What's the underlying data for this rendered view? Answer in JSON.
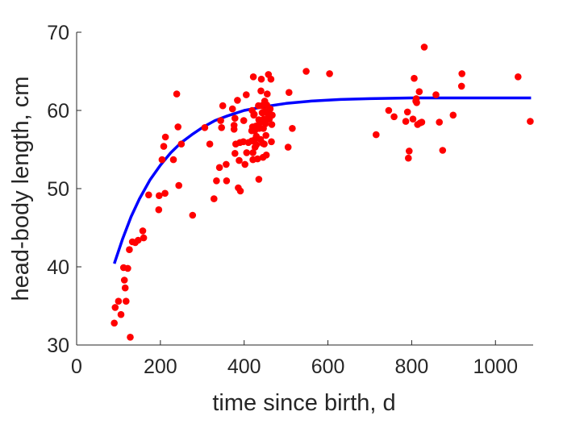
{
  "chart_data": {
    "type": "scatter",
    "title": "",
    "xlabel": "time since birth, d",
    "ylabel": "head-body length, cm",
    "xlim": [
      0,
      1090
    ],
    "ylim": [
      30,
      70
    ],
    "xticks": [
      0,
      200,
      400,
      600,
      800,
      1000
    ],
    "yticks": [
      30,
      40,
      50,
      60,
      70
    ],
    "xtick_labels": [
      "0",
      "200",
      "400",
      "600",
      "800",
      "1000"
    ],
    "ytick_labels": [
      "30",
      "40",
      "50",
      "60",
      "70"
    ],
    "grid": false,
    "series": [
      {
        "kind": "points",
        "color": "#ff0000",
        "points": [
          [
            90,
            32.8
          ],
          [
            92,
            34.8
          ],
          [
            100,
            35.6
          ],
          [
            106,
            33.9
          ],
          [
            112,
            39.9
          ],
          [
            114,
            38.3
          ],
          [
            116,
            37.3
          ],
          [
            118,
            35.6
          ],
          [
            122,
            39.8
          ],
          [
            126,
            42.2
          ],
          [
            128,
            31.0
          ],
          [
            133,
            43.2
          ],
          [
            140,
            43.1
          ],
          [
            147,
            43.4
          ],
          [
            158,
            44.6
          ],
          [
            160,
            43.7
          ],
          [
            172,
            49.2
          ],
          [
            196,
            47.3
          ],
          [
            197,
            49.1
          ],
          [
            204,
            53.7
          ],
          [
            208,
            55.4
          ],
          [
            211,
            49.4
          ],
          [
            212,
            56.6
          ],
          [
            231,
            53.7
          ],
          [
            239,
            62.1
          ],
          [
            242,
            57.9
          ],
          [
            244,
            50.4
          ],
          [
            250,
            55.7
          ],
          [
            277,
            46.6
          ],
          [
            306,
            57.8
          ],
          [
            318,
            55.7
          ],
          [
            328,
            48.7
          ],
          [
            334,
            51.0
          ],
          [
            341,
            52.7
          ],
          [
            344,
            58.7
          ],
          [
            346,
            57.8
          ],
          [
            349,
            60.6
          ],
          [
            357,
            53.1
          ],
          [
            358,
            51.0
          ],
          [
            372,
            60.2
          ],
          [
            376,
            58.1
          ],
          [
            376,
            57.6
          ],
          [
            378,
            59.0
          ],
          [
            378,
            54.5
          ],
          [
            380,
            55.7
          ],
          [
            384,
            61.3
          ],
          [
            386,
            50.1
          ],
          [
            388,
            53.6
          ],
          [
            390,
            55.9
          ],
          [
            391,
            49.7
          ],
          [
            398,
            56.0
          ],
          [
            399,
            58.7
          ],
          [
            402,
            53.1
          ],
          [
            405,
            62.0
          ],
          [
            406,
            54.6
          ],
          [
            410,
            55.9
          ],
          [
            418,
            56.1
          ],
          [
            418,
            57.4
          ],
          [
            419,
            60.0
          ],
          [
            420,
            57.9
          ],
          [
            421,
            54.6
          ],
          [
            421,
            53.7
          ],
          [
            422,
            64.3
          ],
          [
            423,
            59.4
          ],
          [
            424,
            59.5
          ],
          [
            425,
            57.4
          ],
          [
            426,
            56.3
          ],
          [
            426,
            55.3
          ],
          [
            428,
            58.0
          ],
          [
            429,
            56.7
          ],
          [
            429,
            55.6
          ],
          [
            430,
            57.7
          ],
          [
            432,
            53.8
          ],
          [
            434,
            60.6
          ],
          [
            435,
            51.2
          ],
          [
            435,
            58.8
          ],
          [
            436,
            57.7
          ],
          [
            437,
            58.4
          ],
          [
            439,
            56.3
          ],
          [
            440,
            62.5
          ],
          [
            441,
            64.0
          ],
          [
            442,
            60.6
          ],
          [
            443,
            59.7
          ],
          [
            444,
            55.8
          ],
          [
            445,
            54.0
          ],
          [
            446,
            57.7
          ],
          [
            447,
            58.9
          ],
          [
            448,
            55.7
          ],
          [
            449,
            61.2
          ],
          [
            450,
            59.9
          ],
          [
            451,
            58.3
          ],
          [
            452,
            56.8
          ],
          [
            453,
            54.3
          ],
          [
            454,
            60.7
          ],
          [
            455,
            62.1
          ],
          [
            456,
            59.6
          ],
          [
            458,
            64.6
          ],
          [
            460,
            58.9
          ],
          [
            462,
            60.2
          ],
          [
            464,
            64.0
          ],
          [
            465,
            56.0
          ],
          [
            466,
            58.2
          ],
          [
            467,
            59.4
          ],
          [
            505,
            55.3
          ],
          [
            507,
            62.3
          ],
          [
            515,
            57.7
          ],
          [
            548,
            65.0
          ],
          [
            604,
            64.7
          ],
          [
            715,
            56.9
          ],
          [
            745,
            60.0
          ],
          [
            758,
            59.2
          ],
          [
            786,
            58.6
          ],
          [
            790,
            59.8
          ],
          [
            792,
            53.9
          ],
          [
            794,
            54.8
          ],
          [
            803,
            58.9
          ],
          [
            806,
            64.1
          ],
          [
            810,
            61.2
          ],
          [
            811,
            61.5
          ],
          [
            812,
            61.0
          ],
          [
            814,
            58.2
          ],
          [
            818,
            62.4
          ],
          [
            820,
            58.4
          ],
          [
            824,
            58.5
          ],
          [
            830,
            68.1
          ],
          [
            858,
            62.0
          ],
          [
            866,
            58.5
          ],
          [
            874,
            54.9
          ],
          [
            899,
            59.4
          ],
          [
            919,
            63.1
          ],
          [
            920,
            64.7
          ],
          [
            1054,
            64.3
          ],
          [
            1083,
            58.6
          ]
        ]
      },
      {
        "kind": "curve",
        "color": "#0000ff",
        "points": [
          [
            90,
            40.4
          ],
          [
            110,
            43.6
          ],
          [
            130,
            46.4
          ],
          [
            150,
            48.7
          ],
          [
            175,
            51.1
          ],
          [
            200,
            53.0
          ],
          [
            225,
            54.6
          ],
          [
            250,
            55.9
          ],
          [
            275,
            56.9
          ],
          [
            300,
            57.8
          ],
          [
            330,
            58.7
          ],
          [
            360,
            59.3
          ],
          [
            400,
            60.0
          ],
          [
            450,
            60.5
          ],
          [
            500,
            60.9
          ],
          [
            560,
            61.2
          ],
          [
            630,
            61.4
          ],
          [
            700,
            61.5
          ],
          [
            800,
            61.6
          ],
          [
            900,
            61.6
          ],
          [
            1000,
            61.6
          ],
          [
            1085,
            61.6
          ]
        ]
      }
    ]
  }
}
